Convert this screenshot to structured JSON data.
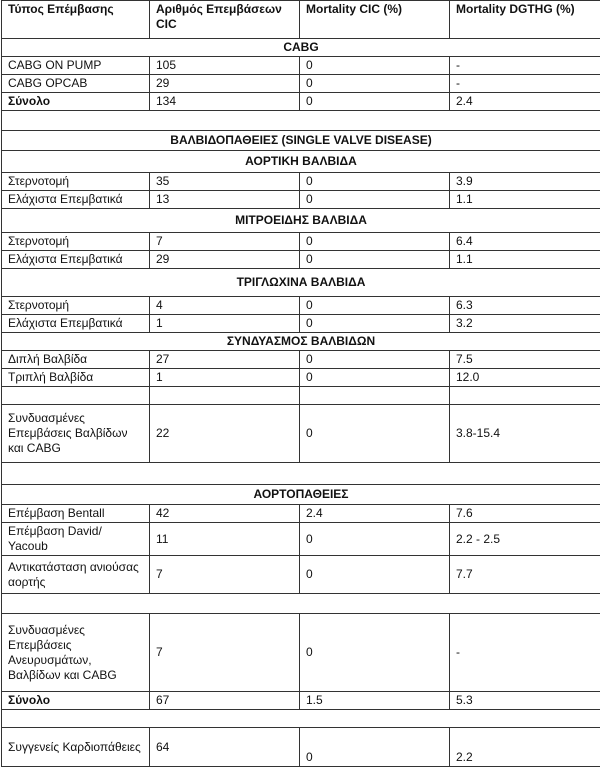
{
  "table": {
    "headers": [
      "Τύπος Επέμβασης",
      "Αριθμός Επεμβάσεων CIC",
      "Mortality CIC (%)",
      "Mortality DGTHG (%)"
    ],
    "rows": [
      {
        "type": "section",
        "label": "CABG"
      },
      {
        "type": "data",
        "cells": [
          "CABG ON PUMP",
          "105",
          "0",
          "-"
        ]
      },
      {
        "type": "data",
        "cells": [
          "CABG OPCAB",
          "29",
          "0",
          "-"
        ]
      },
      {
        "type": "total",
        "cells": [
          "Σύνολο",
          "134",
          "0",
          "2.4"
        ]
      },
      {
        "type": "blank"
      },
      {
        "type": "section",
        "label": "ΒΑΛΒΙΔΟΠΑΘΕΙΕΣ (SINGLE VALVE DISEASE)"
      },
      {
        "type": "section",
        "label": "ΑΟΡΤΙΚΗ ΒΑΛΒΙΔΑ"
      },
      {
        "type": "data",
        "cells": [
          "Στερνοτομή",
          "35",
          "0",
          "3.9"
        ]
      },
      {
        "type": "data",
        "cells": [
          "Ελάχιστα Επεμβατικά",
          "13",
          "0",
          "1.1"
        ]
      },
      {
        "type": "section",
        "label": "ΜΙΤΡΟΕΙΔΗΣ ΒΑΛΒΙΔΑ"
      },
      {
        "type": "data",
        "cells": [
          "Στερνοτομή",
          "7",
          "0",
          "6.4"
        ]
      },
      {
        "type": "data",
        "cells": [
          "Ελάχιστα Επεμβατικά",
          "29",
          "0",
          "1.1"
        ]
      },
      {
        "type": "section",
        "label": "ΤΡΙΓΛΩΧΙΝΑ ΒΑΛΒΙΔΑ"
      },
      {
        "type": "data",
        "cells": [
          "Στερνοτομή",
          "4",
          "0",
          "6.3"
        ]
      },
      {
        "type": "data",
        "cells": [
          "Ελάχιστα Επεμβατικά",
          "1",
          "0",
          "3.2"
        ]
      },
      {
        "type": "section",
        "label": "ΣΥΝΔΥΑΣΜΟΣ ΒΑΛΒΙΔΩΝ"
      },
      {
        "type": "data",
        "cells": [
          "Διπλή Βαλβίδα",
          "27",
          "0",
          "7.5"
        ]
      },
      {
        "type": "data",
        "cells": [
          "Τριπλή Βαλβίδα",
          "1",
          "0",
          "12.0"
        ]
      },
      {
        "type": "blank4"
      },
      {
        "type": "data",
        "cells": [
          "Συνδυασμένες Επεμβάσεις Βαλβίδων και CABG",
          "22",
          "0",
          "3.8-15.4"
        ]
      },
      {
        "type": "blank"
      },
      {
        "type": "section",
        "label": "ΑΟΡΤΟΠΑΘΕΙΕΣ"
      },
      {
        "type": "data",
        "cells": [
          "Επέμβαση Bentall",
          "42",
          "2.4",
          "7.6"
        ]
      },
      {
        "type": "data",
        "cells": [
          "Επέμβαση David/ Yacoub",
          "11",
          "0",
          "2.2 - 2.5"
        ]
      },
      {
        "type": "data",
        "cells": [
          "Αντικατάσταση ανιούσας αορτής",
          "7",
          "0",
          "7.7"
        ]
      },
      {
        "type": "blank"
      },
      {
        "type": "data",
        "cells": [
          "Συνδυασμένες Επεμβάσεις Ανευρυσμάτων, Βαλβίδων και CABG",
          "7",
          "0",
          "-"
        ]
      },
      {
        "type": "total",
        "cells": [
          "Σύνολο",
          "67",
          "1.5",
          "5.3"
        ]
      },
      {
        "type": "blank"
      },
      {
        "type": "last",
        "cells": [
          "Συγγενείς Καρδιοπάθειες",
          "64",
          "0",
          "2.2"
        ]
      }
    ]
  }
}
